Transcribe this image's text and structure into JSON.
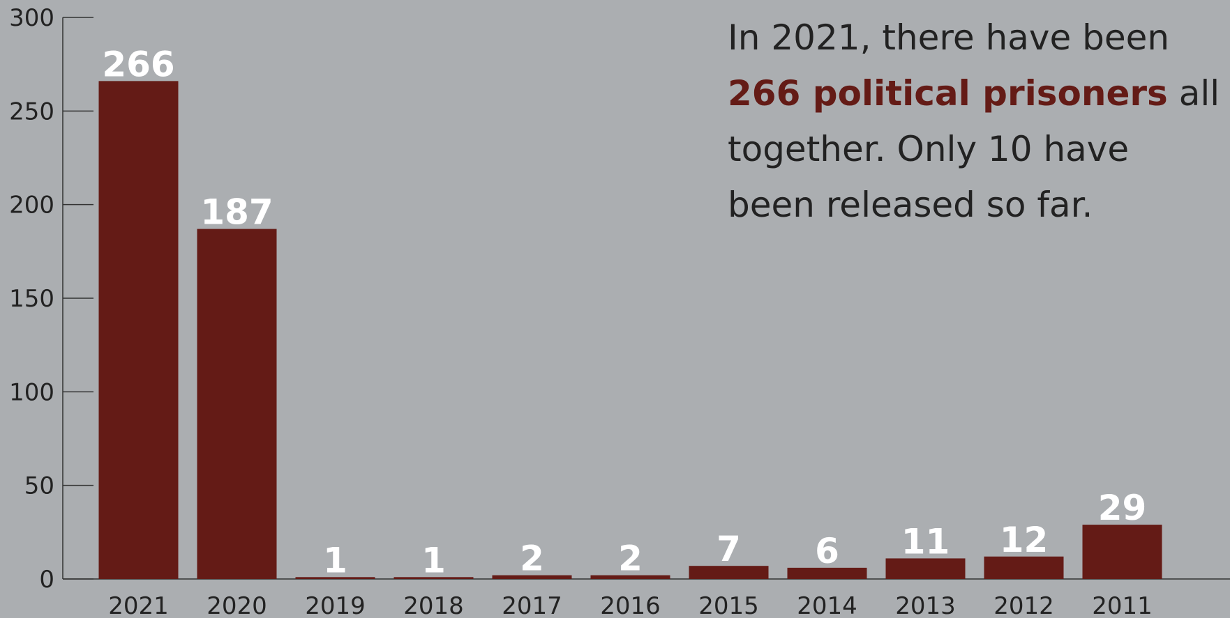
{
  "chart_data": {
    "type": "bar",
    "categories": [
      "2021",
      "2020",
      "2019",
      "2018",
      "2017",
      "2016",
      "2015",
      "2014",
      "2013",
      "2012",
      "2011"
    ],
    "values": [
      266,
      187,
      1,
      1,
      2,
      2,
      7,
      6,
      11,
      12,
      29
    ],
    "data_labels": [
      "266",
      "187",
      "1",
      "1",
      "2",
      "2",
      "7",
      "6",
      "11",
      "12",
      "29"
    ],
    "y_ticks": [
      "0",
      "50",
      "100",
      "150",
      "200",
      "250",
      "300"
    ],
    "ylim": [
      0,
      300
    ],
    "xlabel": "",
    "ylabel": "",
    "grid": false,
    "bar_color": "#641b16",
    "background_color": "#abaeb1",
    "annotation": {
      "text_before": "In 2021, there have been ",
      "highlight": "266 political prisoners",
      "text_after": " all together. Only 10 have been released so far.",
      "highlight_color": "#641b16"
    }
  }
}
